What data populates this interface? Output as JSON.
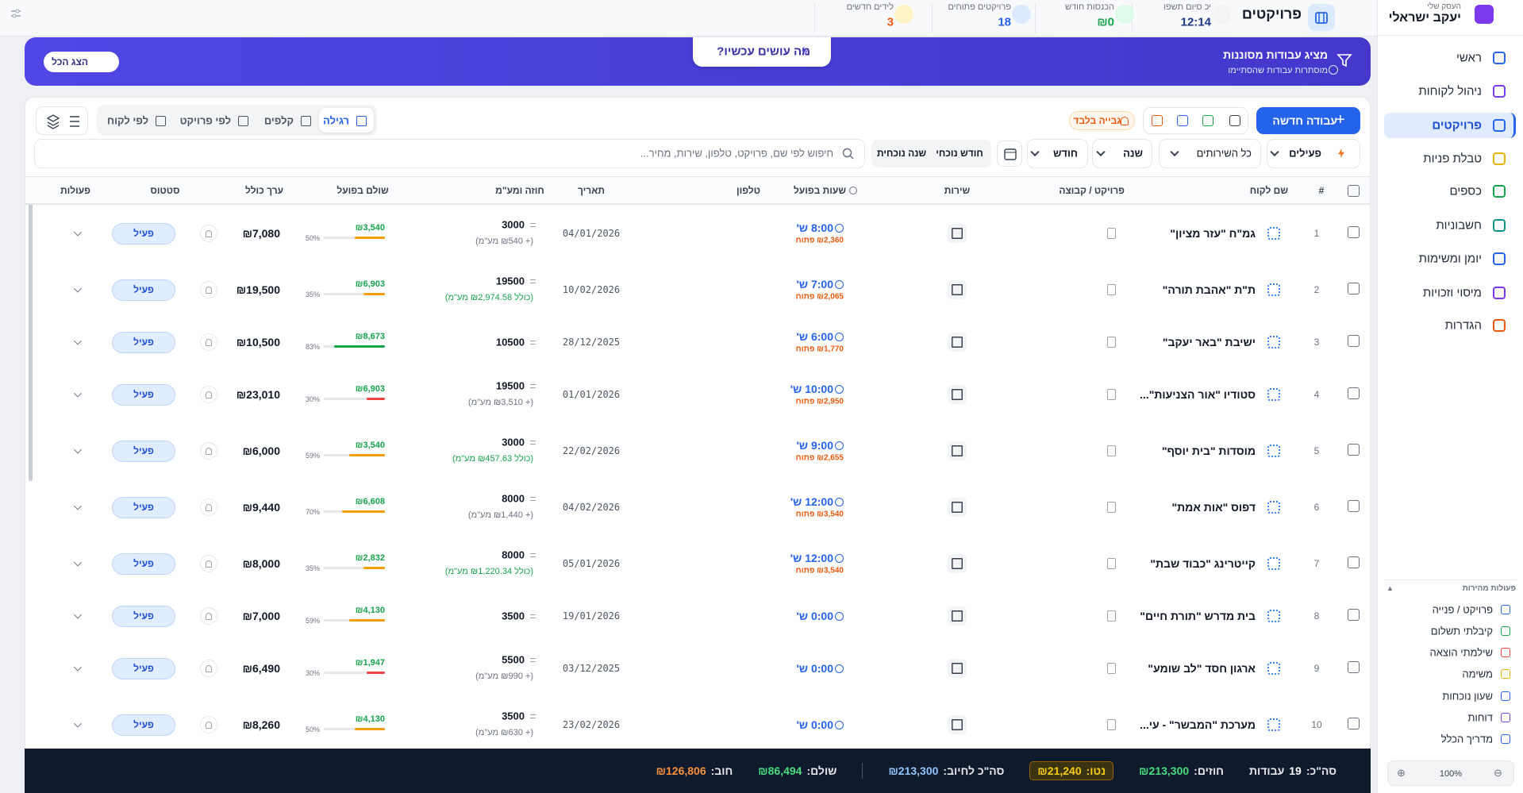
{
  "header": {
    "title": "פרויקטים",
    "stats": [
      {
        "label": "יכ סיום תשפו",
        "value": "12:14"
      },
      {
        "label": "הכנסות חודש",
        "value": "₪0"
      },
      {
        "label": "פרויקטים פתוחים",
        "value": "18"
      },
      {
        "label": "לידים חדשים",
        "value": "3"
      }
    ]
  },
  "sidebar": {
    "business_label": "העסק שלי",
    "business_name": "יעקב ישראלי",
    "nav": [
      "ראשי",
      "ניהול לקוחות",
      "פרויקטים",
      "טבלת פניות",
      "כספים",
      "חשבוניות",
      "יומן ומשימות",
      "מיסוי וזכויות",
      "הגדרות"
    ],
    "quick_actions_title": "פעולות מהירות",
    "quick_actions": [
      "פרויקט / פנייה",
      "קיבלתי תשלום",
      "שילמתי הוצאה",
      "משימה",
      "שעון נוכחות",
      "דוחות",
      "מדריך הכלל"
    ],
    "zoom": "100%"
  },
  "banner": {
    "title": "מציג עבודות מסוננות",
    "subtitle": "מוסתרות עבודות שהסתיימו",
    "center_button": "מה עושים עכשיו?",
    "show_all": "הצג הכל"
  },
  "toolbar": {
    "new_job": "עבודה חדשה",
    "collection_only": "גבייה בלבד",
    "views": [
      "רגילה",
      "קלפים",
      "לפי פרויקט",
      "לפי לקוח"
    ]
  },
  "filters": {
    "search_placeholder": "חיפוש לפי שם, פרויקט, טלפון, שירות, מחיר...",
    "status": "פעילים",
    "services": "כל השירותים",
    "year": "שנה",
    "month": "חודש",
    "current_month": "חודש נוכחי",
    "current_year": "שנה נוכחית"
  },
  "table": {
    "columns": [
      "#",
      "שם לקוח",
      "פרויקט / קבוצה",
      "שירות",
      "שעות בפועל",
      "טלפון",
      "תאריך",
      "חוזה ומע\"מ",
      "שולם בפועל",
      "ערך כולל",
      "סטטוס",
      "פעולות"
    ],
    "rows": [
      {
        "index": 1,
        "client": "גמ\"ח \"עזר מציון\"",
        "hours": "8:00 ש'",
        "open": "₪2,360 פתוח",
        "date": "04/01/2026",
        "contract": 3000,
        "contract_note": "(+ ₪540 מע\"מ)",
        "note_color": "#6b7280",
        "paid": "₪3,540",
        "paid_pct": 50,
        "paid_pct_label": "50%",
        "bar_color": "#f59e0b",
        "total": "₪7,080",
        "status": "פעיל"
      },
      {
        "index": 2,
        "client": "ת\"ת \"אהבת תורה\"",
        "hours": "7:00 ש'",
        "open": "₪2,065 פתוח",
        "date": "10/02/2026",
        "contract": 19500,
        "contract_note": "(כולל ₪2,974.58 מע\"מ)",
        "note_color": "#16a34a",
        "paid": "₪6,903",
        "paid_pct": 35,
        "paid_pct_label": "35%",
        "bar_color": "#f59e0b",
        "total": "₪19,500",
        "status": "פעיל"
      },
      {
        "index": 3,
        "client": "ישיבת \"באר יעקב\"",
        "hours": "6:00 ש'",
        "open": "₪1,770 פתוח",
        "date": "28/12/2025",
        "contract": 10500,
        "paid": "₪8,673",
        "paid_pct": 83,
        "paid_pct_label": "83%",
        "bar_color": "#16a34a",
        "total": "₪10,500",
        "status": "פעיל"
      },
      {
        "index": 4,
        "client": "סטודיו \"אור הצניעות\"...",
        "hours": "10:00 ש'",
        "open": "₪2,950 פתוח",
        "date": "01/01/2026",
        "contract": 19500,
        "contract_note": "(+ ₪3,510 מע\"מ)",
        "note_color": "#6b7280",
        "paid": "₪6,903",
        "paid_pct": 30,
        "paid_pct_label": "30%",
        "bar_color": "#ef4444",
        "total": "₪23,010",
        "status": "פעיל"
      },
      {
        "index": 5,
        "client": "מוסדות \"בית יוסף\"",
        "hours": "9:00 ש'",
        "open": "₪2,655 פתוח",
        "date": "22/02/2026",
        "contract": 3000,
        "contract_note": "(כולל ₪457.63 מע\"מ)",
        "note_color": "#16a34a",
        "paid": "₪3,540",
        "paid_pct": 59,
        "paid_pct_label": "59%",
        "bar_color": "#f59e0b",
        "total": "₪6,000",
        "status": "פעיל"
      },
      {
        "index": 6,
        "client": "דפוס \"אות אמת\"",
        "hours": "12:00 ש'",
        "open": "₪3,540 פתוח",
        "date": "04/02/2026",
        "contract": 8000,
        "contract_note": "(+ ₪1,440 מע\"מ)",
        "note_color": "#6b7280",
        "paid": "₪6,608",
        "paid_pct": 70,
        "paid_pct_label": "70%",
        "bar_color": "#f59e0b",
        "total": "₪9,440",
        "status": "פעיל"
      },
      {
        "index": 7,
        "client": "קייטרינג \"כבוד שבת\"",
        "hours": "12:00 ש'",
        "open": "₪3,540 פתוח",
        "date": "05/01/2026",
        "contract": 8000,
        "contract_note": "(כולל ₪1,220.34 מע\"מ)",
        "note_color": "#16a34a",
        "paid": "₪2,832",
        "paid_pct": 35,
        "paid_pct_label": "35%",
        "bar_color": "#f59e0b",
        "total": "₪8,000",
        "status": "פעיל"
      },
      {
        "index": 8,
        "client": "בית מדרש \"תורת חיים\"",
        "hours": "0:00 ש'",
        "date": "19/01/2026",
        "contract": 3500,
        "paid": "₪4,130",
        "paid_pct": 59,
        "paid_pct_label": "59%",
        "bar_color": "#f59e0b",
        "total": "₪7,000",
        "status": "פעיל"
      },
      {
        "index": 9,
        "client": "ארגון חסד \"לב שומע\"",
        "hours": "0:00 ש'",
        "date": "03/12/2025",
        "contract": 5500,
        "contract_note": "(+ ₪990 מע\"מ)",
        "note_color": "#6b7280",
        "paid": "₪1,947",
        "paid_pct": 30,
        "paid_pct_label": "30%",
        "bar_color": "#ef4444",
        "total": "₪6,490",
        "status": "פעיל"
      },
      {
        "index": 10,
        "client": "מערכת \"המבשר\" - עי...",
        "hours": "0:00 ש'",
        "date": "23/02/2026",
        "contract": 3500,
        "contract_note": "(+ ₪630 מע\"מ)",
        "note_color": "#6b7280",
        "paid": "₪4,130",
        "paid_pct": 50,
        "paid_pct_label": "50%",
        "bar_color": "#f59e0b",
        "total": "₪8,260",
        "status": "פעיל"
      }
    ]
  },
  "footer": {
    "count_label": "סה\"כ:",
    "count": "19",
    "count_unit": "עבודות",
    "contracts_label": "חוזים:",
    "contracts": "₪213,300",
    "net_label": "נטו:",
    "net": "₪21,240",
    "billable_label": "סה\"כ לחיוב:",
    "billable": "₪213,300",
    "paid_label": "שולם:",
    "paid": "₪86,494",
    "debt_label": "חוב:",
    "debt": "₪126,806"
  }
}
